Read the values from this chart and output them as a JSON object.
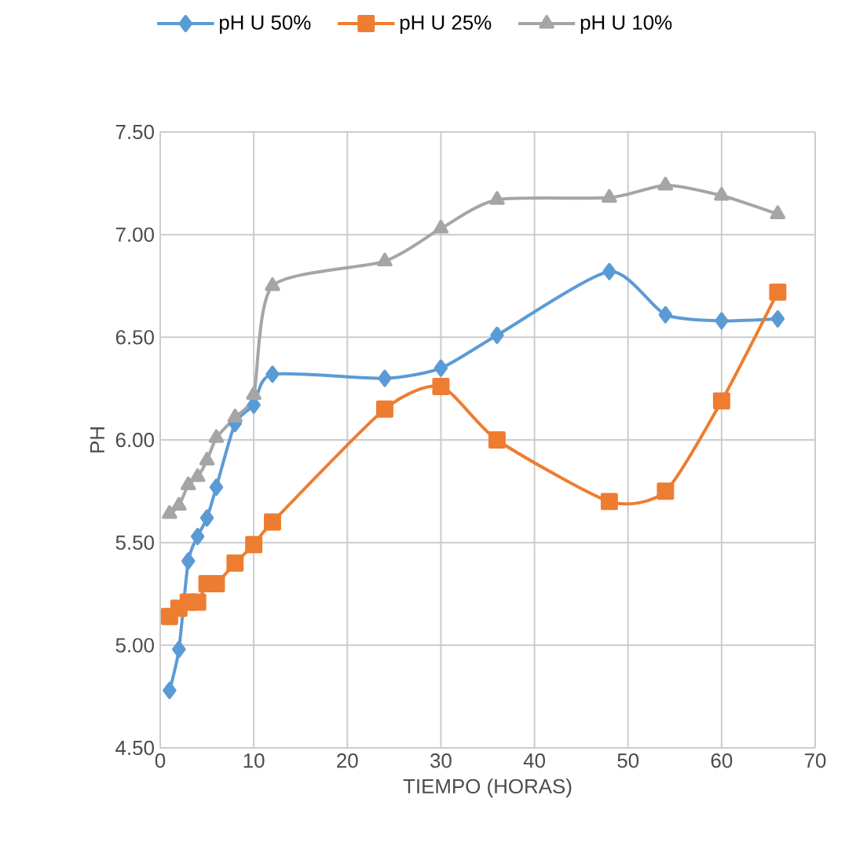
{
  "chart_data": {
    "type": "line",
    "xlabel": "TIEMPO (HORAS)",
    "ylabel": "PH",
    "x": [
      1,
      2,
      3,
      4,
      5,
      6,
      8,
      10,
      12,
      24,
      30,
      36,
      48,
      54,
      60,
      66
    ],
    "series": [
      {
        "name": "pH U 50%",
        "color": "#5b9bd5",
        "marker": "diamond",
        "values": [
          4.78,
          4.98,
          5.41,
          5.53,
          5.62,
          5.77,
          6.08,
          6.17,
          6.32,
          6.3,
          6.35,
          6.51,
          6.82,
          6.61,
          6.58,
          6.59
        ]
      },
      {
        "name": "pH U 25%",
        "color": "#ed7d31",
        "marker": "square",
        "values": [
          5.14,
          5.18,
          5.21,
          5.21,
          5.3,
          5.3,
          5.4,
          5.49,
          5.6,
          6.15,
          6.26,
          6.0,
          5.7,
          5.75,
          6.19,
          6.72
        ]
      },
      {
        "name": "pH U 10%",
        "color": "#a5a5a5",
        "marker": "triangle",
        "values": [
          5.64,
          5.68,
          5.78,
          5.82,
          5.9,
          6.01,
          6.11,
          6.22,
          6.75,
          6.87,
          7.03,
          7.17,
          7.18,
          7.24,
          7.19,
          7.1
        ]
      }
    ],
    "xlim": [
      0,
      70
    ],
    "xticks": [
      0,
      10,
      20,
      30,
      40,
      50,
      60,
      70
    ],
    "ylim": [
      4.5,
      7.5
    ],
    "yticks": [
      {
        "value": 4.5,
        "label": "4.50"
      },
      {
        "value": 5.0,
        "label": "5.00"
      },
      {
        "value": 5.5,
        "label": "5.50"
      },
      {
        "value": 6.0,
        "label": "6.00"
      },
      {
        "value": 6.5,
        "label": "6.50"
      },
      {
        "value": 7.0,
        "label": "7.00"
      },
      {
        "value": 7.5,
        "label": "7.50"
      }
    ],
    "grid": true,
    "legend": "top",
    "line_style": "solid"
  }
}
